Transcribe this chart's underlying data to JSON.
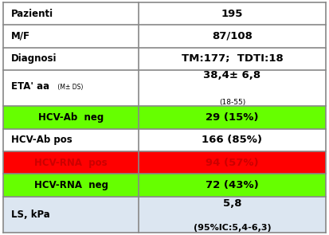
{
  "rows": [
    {
      "label": "Pazienti",
      "value": "195",
      "bg": "#ffffff",
      "tc_label": "#000000",
      "tc_value": "#000000",
      "label_align": "left",
      "multiline_value": false
    },
    {
      "label": "M/F",
      "value": "87/108",
      "bg": "#ffffff",
      "tc_label": "#000000",
      "tc_value": "#000000",
      "label_align": "left",
      "multiline_value": false
    },
    {
      "label": "Diagnosi",
      "value": "TM:177;  TDTI:18",
      "bg": "#ffffff",
      "tc_label": "#000000",
      "tc_value": "#000000",
      "label_align": "left",
      "multiline_value": false
    },
    {
      "label": "ETA' aa",
      "label_small": " (M± DS)",
      "value_line1": "38,4± 6,8",
      "value_line2": "(18-55)",
      "bg": "#ffffff",
      "tc_label": "#000000",
      "tc_value": "#000000",
      "label_align": "left",
      "multiline_value": true
    },
    {
      "label": "HCV-Ab  neg",
      "value": "29 (15%)",
      "bg": "#66ff00",
      "tc_label": "#000000",
      "tc_value": "#000000",
      "label_align": "center",
      "multiline_value": false
    },
    {
      "label": "HCV-Ab pos",
      "value": "166 (85%)",
      "bg": "#ffffff",
      "tc_label": "#000000",
      "tc_value": "#000000",
      "label_align": "left",
      "multiline_value": false
    },
    {
      "label": "HCV-RNA  pos",
      "value": "94 (57%)",
      "bg": "#ff0000",
      "tc_label": "#cc0000",
      "tc_value": "#cc0000",
      "label_align": "center",
      "multiline_value": false
    },
    {
      "label": "HCV-RNA  neg",
      "value": "72 (43%)",
      "bg": "#66ff00",
      "tc_label": "#000000",
      "tc_value": "#000000",
      "label_align": "center",
      "multiline_value": false
    },
    {
      "label": "LS, kPa",
      "value_line1": "5,8",
      "value_line2": "(95%IC:5,4-6,3)",
      "bg": "#dce6f1",
      "tc_label": "#000000",
      "tc_value": "#000000",
      "label_align": "left",
      "multiline_value": true
    }
  ],
  "col_split": 0.42,
  "border_color": "#888888",
  "row_heights_rel": [
    1.0,
    1.0,
    1.0,
    1.6,
    1.0,
    1.0,
    1.0,
    1.0,
    1.6
  ],
  "fig_width": 4.13,
  "fig_height": 2.95,
  "dpi": 100
}
